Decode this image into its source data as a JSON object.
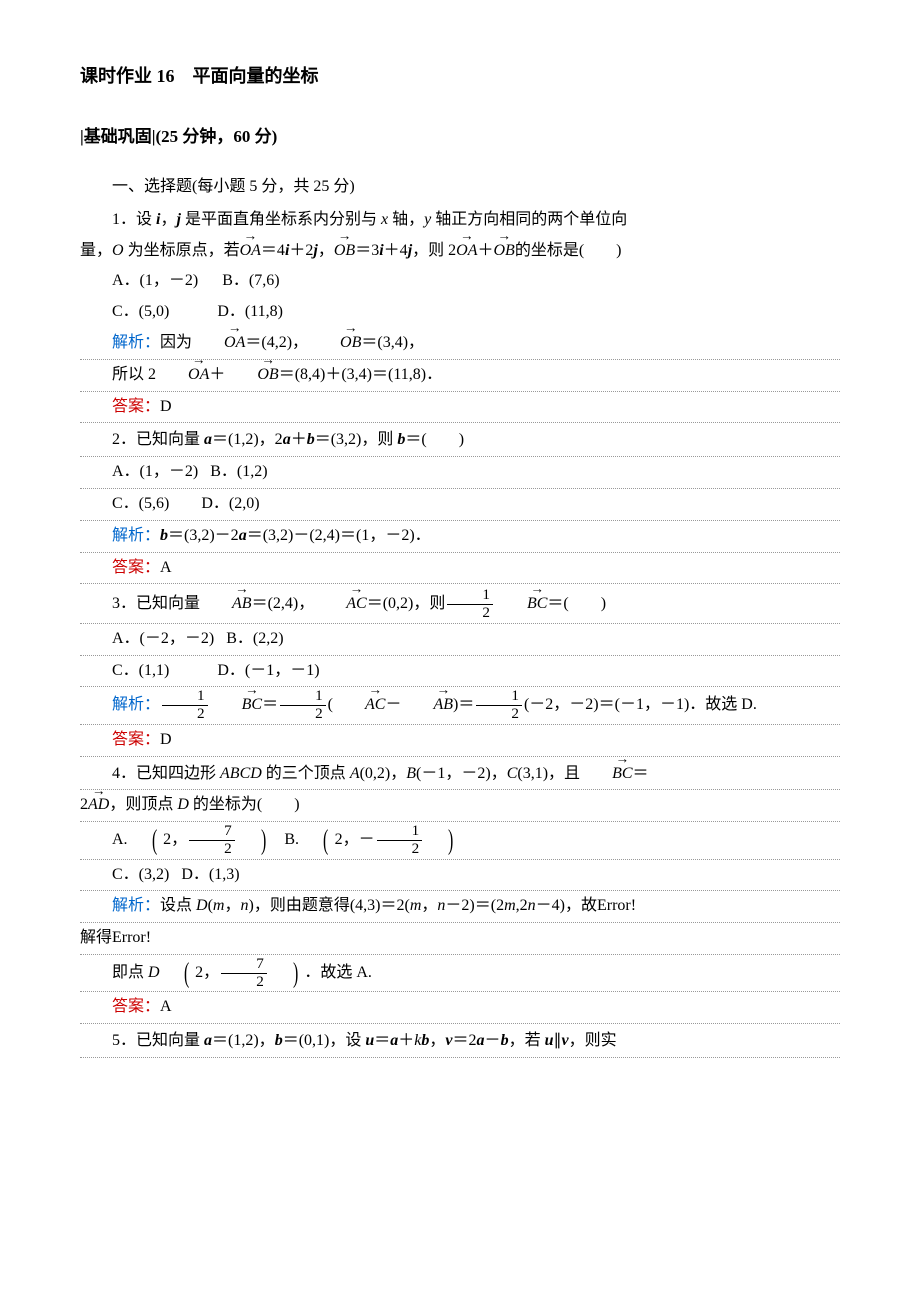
{
  "doc": {
    "title": "课时作业 16　平面向量的坐标",
    "section": "|基础巩固|(25 分钟，60 分)",
    "part_heading": "一、选择题(每小题 5 分，共 25 分)",
    "q1": {
      "stem_1": "1．设 ",
      "stem_2": "，",
      "stem_3": " 是平面直角坐标系内分别与 ",
      "stem_4": " 轴，",
      "stem_5": " 轴正方向相同的两个单位向",
      "stem_line2_a": "量，",
      "stem_line2_b": " 为坐标原点，若",
      "i": "i",
      "j": "j",
      "x": "x",
      "y": "y",
      "O": "O",
      "OA": "OA",
      "OB": "OB",
      "eq1": "＝4",
      "eq1b": "＋2",
      "eq2": "，",
      "eq3": "＝3",
      "eq3b": "＋4",
      "tail": "，则 2",
      "tail2": "＋",
      "tail3": "的坐标是(　　)",
      "optA": "A．(1，－2)",
      "optB": "B．(7,6)",
      "optC": "C．(5,0)",
      "optD": "D．(11,8)",
      "explain_label": "解析：",
      "explain_1": "因为",
      "explain_2": "＝(4,2)，",
      "explain_3": "＝(3,4)，",
      "line2_1": "所以 2",
      "line2_2": "＋",
      "line2_3": "＝(8,4)＋(3,4)＝(11,8)．",
      "answer_label": "答案：",
      "answer": "D"
    },
    "q2": {
      "stem_1": "2．已知向量 ",
      "a": "a",
      "b": "b",
      "stem_2": "＝(1,2)，2",
      "stem_3": "＋",
      "stem_4": "＝(3,2)，则 ",
      "stem_5": "＝(　　)",
      "optA": "A．(1，－2)",
      "optB": "B．(1,2)",
      "optC": "C．(5,6)",
      "optD": "D．(2,0)",
      "explain_label": "解析：",
      "explain_1": "＝(3,2)－2",
      "explain_2": "＝(3,2)－(2,4)＝(1，－2)．",
      "answer_label": "答案：",
      "answer": "A"
    },
    "q3": {
      "stem_1": "3．已知向量",
      "AB": "AB",
      "AC": "AC",
      "BC": "BC",
      "stem_2": "＝(2,4)，",
      "stem_3": "＝(0,2)，则",
      "stem_4": "＝(　　)",
      "frac_num": "1",
      "frac_den": "2",
      "optA": "A．(－2，－2)",
      "optB": "B．(2,2)",
      "optC": "C．(1,1)",
      "optD": "D．(－1，－1)",
      "explain_label": "解析：",
      "explain_1": "＝",
      "explain_2": "(",
      "explain_3": "－",
      "explain_4": ")＝",
      "explain_5": "(－2，－2)＝(－1，－1)．故选 D.",
      "answer_label": "答案：",
      "answer": "D"
    },
    "q4": {
      "stem_1": "4．已知四边形 ",
      "ABCD": "ABCD",
      "stem_2": " 的三个顶点 ",
      "A": "A",
      "Av": "(0,2)，",
      "B": "B",
      "Bv": "(－1，－2)，",
      "C": "C",
      "Cv": "(3,1)，且",
      "BC": "BC",
      "AD": "AD",
      "eq": "＝",
      "two": "2",
      "stem_line2": "，则顶点 ",
      "D": "D",
      "stem_line2b": " 的坐标为(　　)",
      "optA_pre": "A.",
      "optA_in1": "2，",
      "optA_num": "7",
      "optA_den": "2",
      "optB_pre": "B.",
      "optB_in1": "2，－",
      "optB_num": "1",
      "optB_den": "2",
      "optC": "C．(3,2)",
      "optD": "D．(1,3)",
      "explain_label": "解析：",
      "explain_1": "设点 ",
      "explain_Dmn": "(",
      "m": "m",
      "n": "n",
      "explain_mn_sep": "，",
      "explain_2": ")，则由题意得(4,3)＝2(",
      "explain_3": "，",
      "explain_4": "－2)＝(2",
      "explain_5": ",2",
      "explain_6": "－4)，故Error!",
      "line2": "解得Error!",
      "line3_1": "即点 ",
      "line3_2": "．故选 A.",
      "line3_in": "2，",
      "line3_num": "7",
      "line3_den": "2",
      "answer_label": "答案：",
      "answer": "A"
    },
    "q5": {
      "stem_1": "5．已知向量 ",
      "a": "a",
      "b": "b",
      "u": "u",
      "v": "v",
      "k": "k",
      "stem_2": "＝(1,2)，",
      "stem_3": "＝(0,1)，设 ",
      "stem_4": "＝",
      "stem_5": "＋",
      "stem_6": "，",
      "stem_7": "＝2",
      "stem_8": "－",
      "stem_9": "，若 ",
      "stem_10": "∥",
      "stem_11": "，则实"
    }
  }
}
